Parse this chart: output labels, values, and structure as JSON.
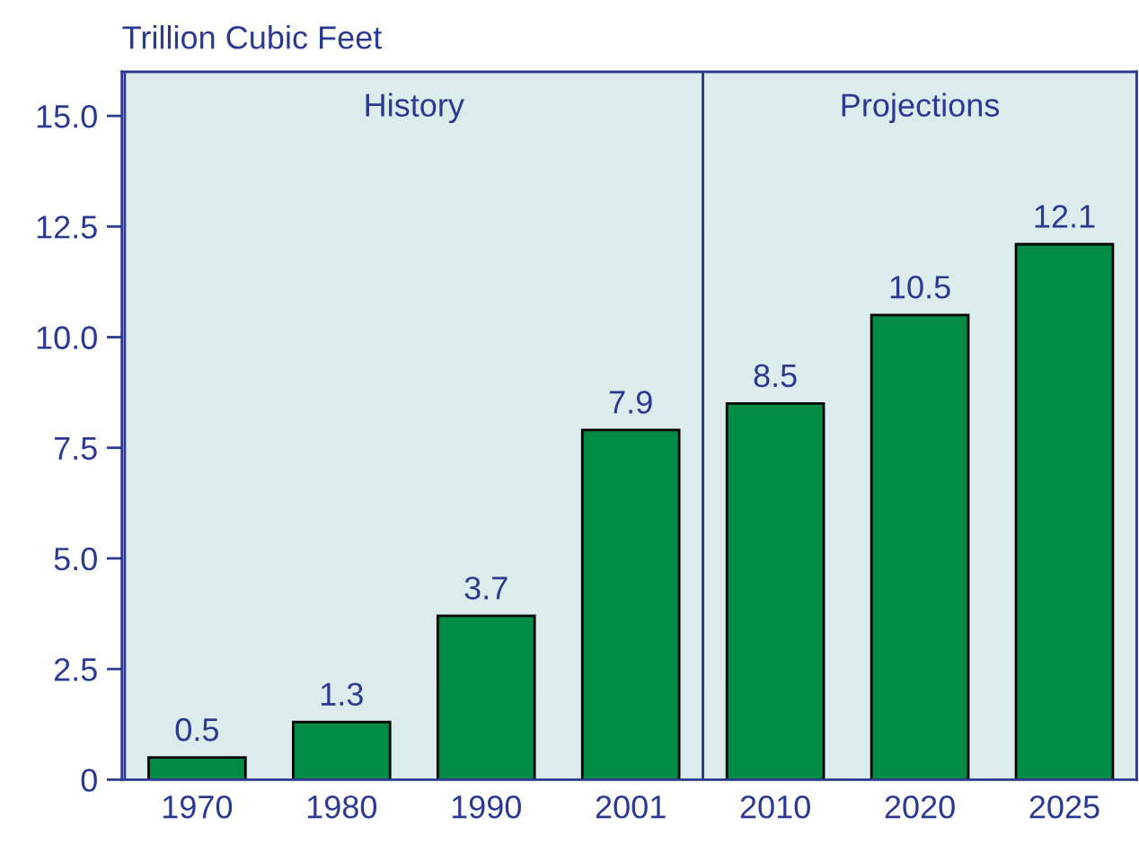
{
  "chart_data": {
    "type": "bar",
    "ylabel": "Trillion Cubic Feet",
    "categories": [
      "1970",
      "1980",
      "1990",
      "2001",
      "2010",
      "2020",
      "2025"
    ],
    "values": [
      0.5,
      1.3,
      3.7,
      7.9,
      8.5,
      10.5,
      12.1
    ],
    "color": "#008c45",
    "data_labels": true,
    "ylim": [
      0,
      16
    ],
    "yticks": [
      0,
      {
        "value": 2.5,
        "label": "2.5"
      },
      {
        "value": 5,
        "label": "5.0"
      },
      {
        "value": 7.5,
        "label": "7.5"
      },
      {
        "value": 10,
        "label": "10.0"
      },
      {
        "value": 12.5,
        "label": "12.5"
      },
      {
        "value": 15,
        "label": "15.0"
      }
    ],
    "bands": [
      {
        "axis": "x",
        "from": "1970",
        "to": "2001",
        "label": "History",
        "color": "#dcebeb"
      },
      {
        "axis": "x",
        "from": "2010",
        "to": "2025",
        "label": "Projections",
        "color": "#dcebeb"
      }
    ],
    "grid": false
  }
}
